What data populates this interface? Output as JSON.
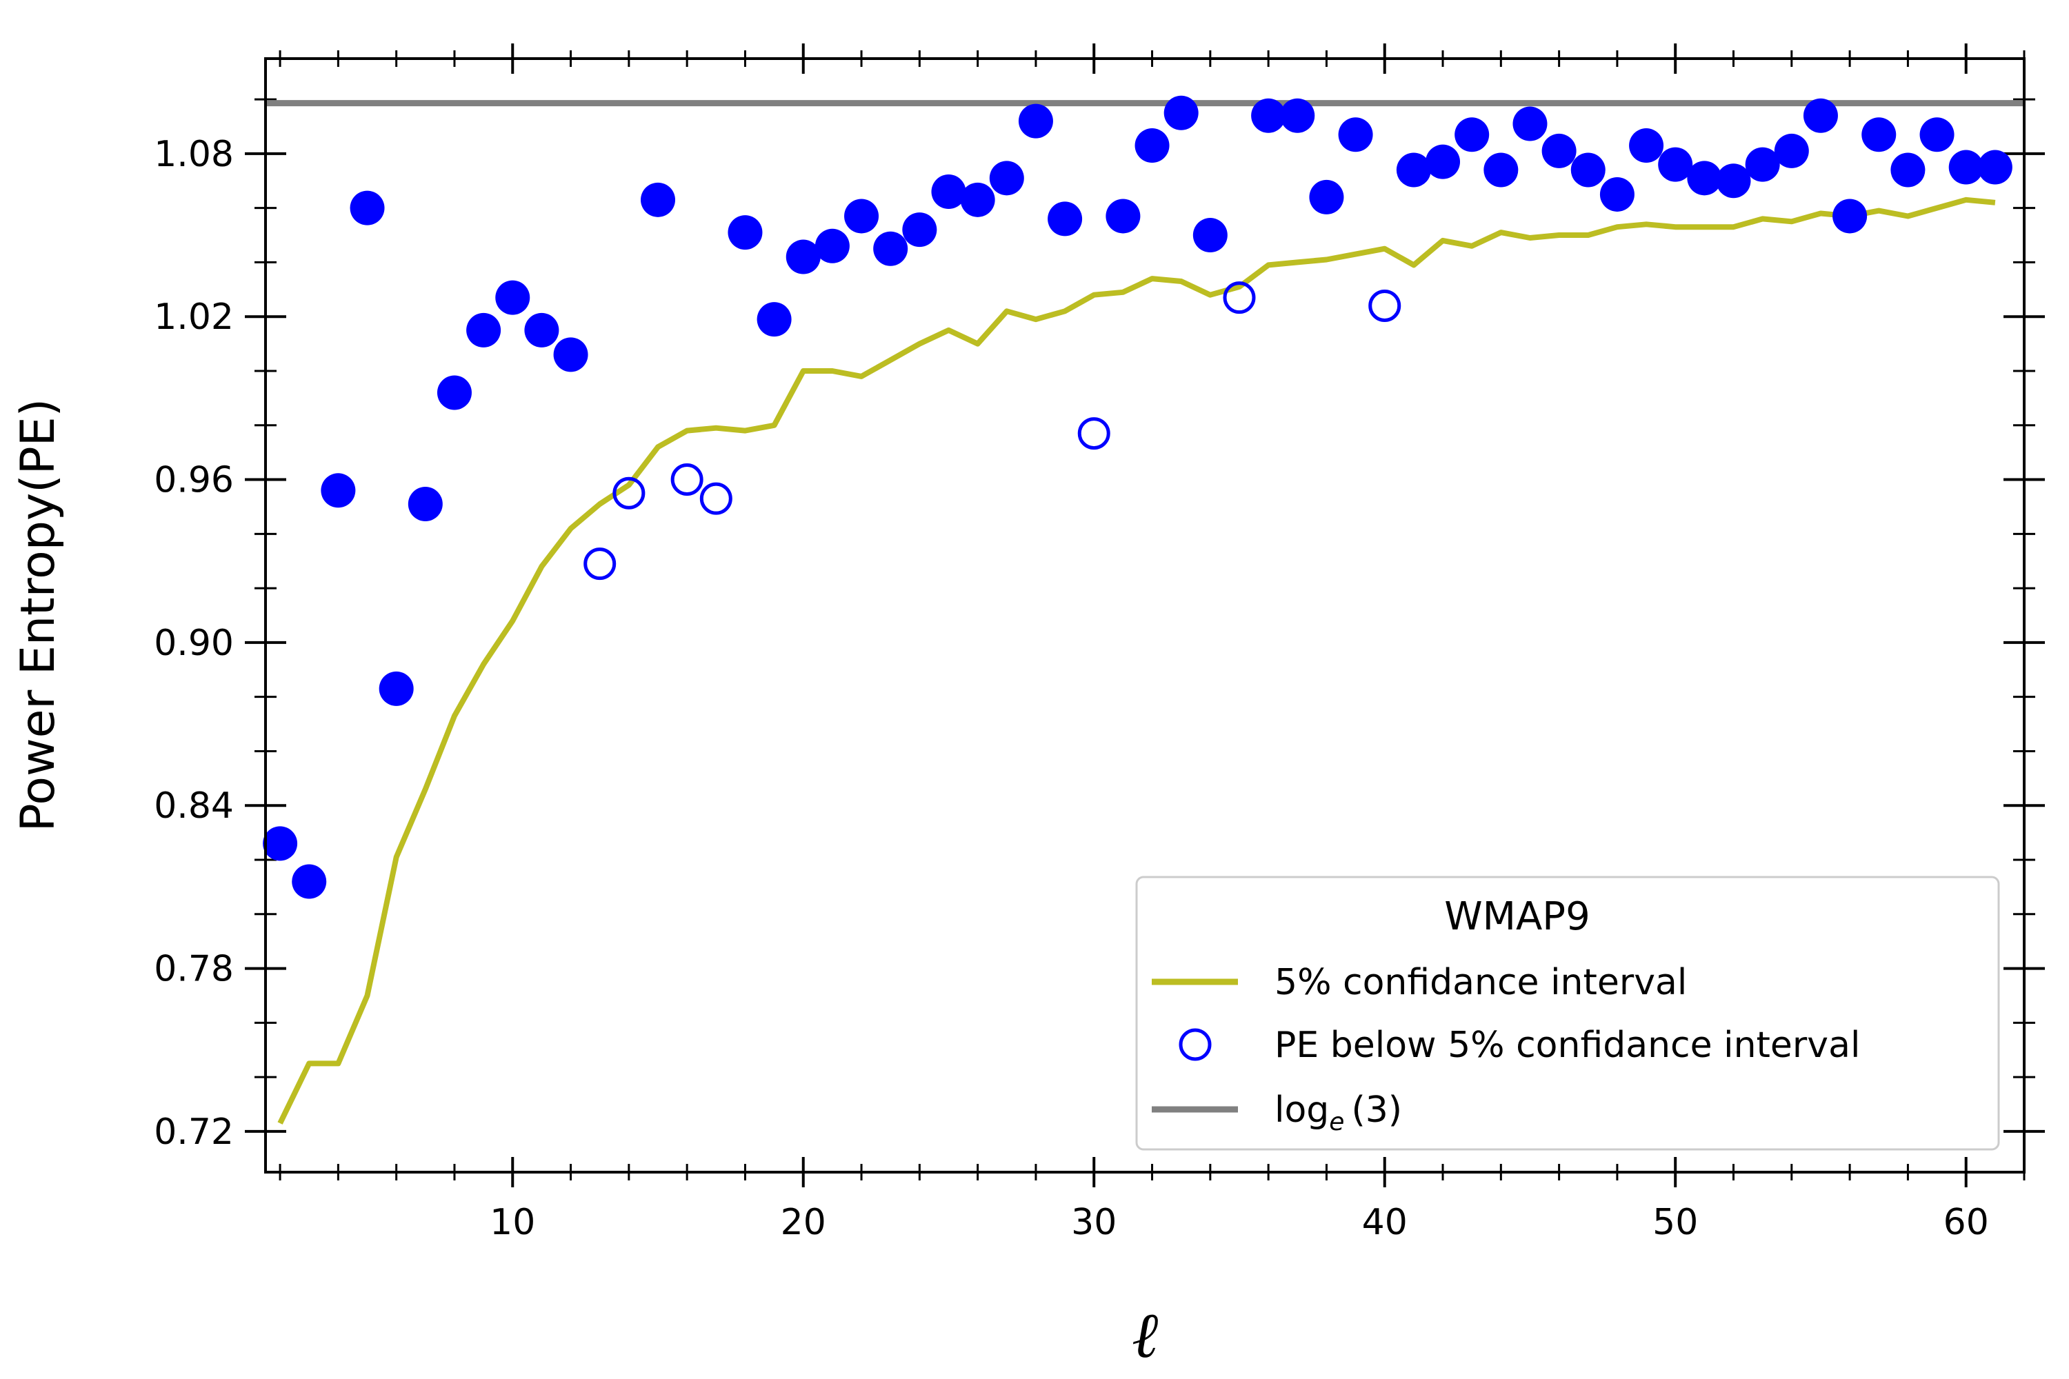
{
  "chart_data": {
    "type": "scatter",
    "title": "",
    "xlabel": "ℓ",
    "ylabel": "Power Entropy(PE)",
    "xlim": [
      1.5,
      62
    ],
    "ylim": [
      0.705,
      1.115
    ],
    "xticks": [
      10,
      20,
      30,
      40,
      50,
      60
    ],
    "xtick_labels": [
      "10",
      "20",
      "30",
      "40",
      "50",
      "60"
    ],
    "yticks": [
      0.72,
      0.78,
      0.84,
      0.9,
      0.96,
      1.02,
      1.08
    ],
    "ytick_labels": [
      "0.72",
      "0.78",
      "0.84",
      "0.90",
      "0.96",
      "1.02",
      "1.08"
    ],
    "legend": {
      "title": "WMAP9",
      "location": "lower-right",
      "entries": [
        {
          "label": "5% confidance interval",
          "marker": "line",
          "color": "#bcbd22"
        },
        {
          "label": "PE below 5% confidance interval",
          "marker": "open-circle",
          "color": "#0000ff"
        },
        {
          "label_base": "log",
          "label_sub": "e",
          "label_rest": "(3)",
          "marker": "line",
          "color": "#808080"
        }
      ]
    },
    "series": [
      {
        "name": "PE",
        "kind": "scatter-filled",
        "color": "#0000ff",
        "points": [
          [
            2,
            0.826
          ],
          [
            3,
            0.812
          ],
          [
            4,
            0.956
          ],
          [
            5,
            1.06
          ],
          [
            6,
            0.883
          ],
          [
            7,
            0.951
          ],
          [
            8,
            0.992
          ],
          [
            9,
            1.015
          ],
          [
            10,
            1.027
          ],
          [
            11,
            1.015
          ],
          [
            12,
            1.006
          ],
          [
            15,
            1.063
          ],
          [
            18,
            1.051
          ],
          [
            19,
            1.019
          ],
          [
            20,
            1.042
          ],
          [
            21,
            1.046
          ],
          [
            22,
            1.057
          ],
          [
            23,
            1.045
          ],
          [
            24,
            1.052
          ],
          [
            25,
            1.066
          ],
          [
            26,
            1.063
          ],
          [
            27,
            1.071
          ],
          [
            28,
            1.092
          ],
          [
            29,
            1.056
          ],
          [
            31,
            1.057
          ],
          [
            32,
            1.083
          ],
          [
            33,
            1.095
          ],
          [
            34,
            1.05
          ],
          [
            36,
            1.094
          ],
          [
            37,
            1.094
          ],
          [
            38,
            1.064
          ],
          [
            39,
            1.087
          ],
          [
            41,
            1.074
          ],
          [
            42,
            1.077
          ],
          [
            43,
            1.087
          ],
          [
            44,
            1.074
          ],
          [
            45,
            1.091
          ],
          [
            46,
            1.081
          ],
          [
            47,
            1.074
          ],
          [
            48,
            1.065
          ],
          [
            49,
            1.083
          ],
          [
            50,
            1.076
          ],
          [
            51,
            1.071
          ],
          [
            52,
            1.07
          ],
          [
            53,
            1.076
          ],
          [
            54,
            1.081
          ],
          [
            55,
            1.094
          ],
          [
            56,
            1.057
          ],
          [
            57,
            1.087
          ],
          [
            58,
            1.074
          ],
          [
            59,
            1.087
          ],
          [
            60,
            1.075
          ],
          [
            61,
            1.075
          ]
        ]
      },
      {
        "name": "PE below 5% confidance interval",
        "kind": "scatter-open",
        "color": "#0000ff",
        "points": [
          [
            13,
            0.929
          ],
          [
            14,
            0.955
          ],
          [
            16,
            0.96
          ],
          [
            17,
            0.953
          ],
          [
            30,
            0.977
          ],
          [
            35,
            1.027
          ],
          [
            40,
            1.024
          ]
        ]
      },
      {
        "name": "5% confidance interval",
        "kind": "line",
        "color": "#bcbd22",
        "points": [
          [
            2,
            0.723
          ],
          [
            3,
            0.745
          ],
          [
            4,
            0.745
          ],
          [
            5,
            0.77
          ],
          [
            6,
            0.821
          ],
          [
            7,
            0.846
          ],
          [
            8,
            0.873
          ],
          [
            9,
            0.892
          ],
          [
            10,
            0.908
          ],
          [
            11,
            0.928
          ],
          [
            12,
            0.942
          ],
          [
            13,
            0.951
          ],
          [
            14,
            0.958
          ],
          [
            15,
            0.972
          ],
          [
            16,
            0.978
          ],
          [
            17,
            0.979
          ],
          [
            18,
            0.978
          ],
          [
            19,
            0.98
          ],
          [
            20,
            1.0
          ],
          [
            21,
            1.0
          ],
          [
            22,
            0.998
          ],
          [
            23,
            1.004
          ],
          [
            24,
            1.01
          ],
          [
            25,
            1.015
          ],
          [
            26,
            1.01
          ],
          [
            27,
            1.022
          ],
          [
            28,
            1.019
          ],
          [
            29,
            1.022
          ],
          [
            30,
            1.028
          ],
          [
            31,
            1.029
          ],
          [
            32,
            1.034
          ],
          [
            33,
            1.033
          ],
          [
            34,
            1.028
          ],
          [
            35,
            1.031
          ],
          [
            36,
            1.039
          ],
          [
            37,
            1.04
          ],
          [
            38,
            1.041
          ],
          [
            39,
            1.043
          ],
          [
            40,
            1.045
          ],
          [
            41,
            1.039
          ],
          [
            42,
            1.048
          ],
          [
            43,
            1.046
          ],
          [
            44,
            1.051
          ],
          [
            45,
            1.049
          ],
          [
            46,
            1.05
          ],
          [
            47,
            1.05
          ],
          [
            48,
            1.053
          ],
          [
            49,
            1.054
          ],
          [
            50,
            1.053
          ],
          [
            51,
            1.053
          ],
          [
            52,
            1.053
          ],
          [
            53,
            1.056
          ],
          [
            54,
            1.055
          ],
          [
            55,
            1.058
          ],
          [
            56,
            1.057
          ],
          [
            57,
            1.059
          ],
          [
            58,
            1.057
          ],
          [
            59,
            1.06
          ],
          [
            60,
            1.063
          ],
          [
            61,
            1.062
          ]
        ]
      },
      {
        "name": "log_e(3)",
        "kind": "hline",
        "color": "#808080",
        "y": 1.0986
      }
    ]
  }
}
